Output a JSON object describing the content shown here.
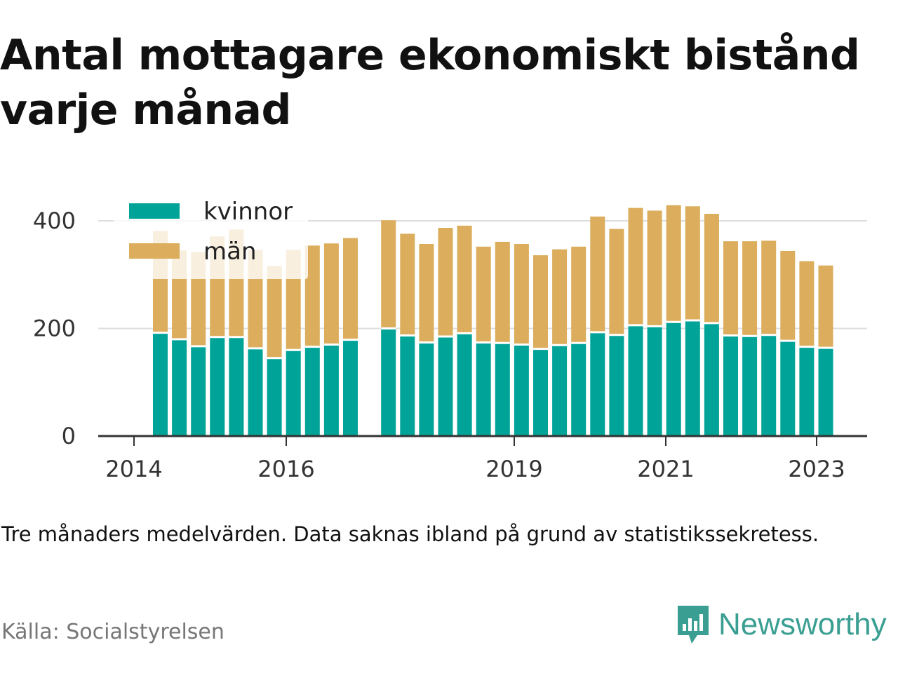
{
  "title": "Antal mottagare ekonomiskt bistånd varje månad",
  "note": "Tre månaders medelvärden. Data saknas ibland på grund av statistikssekretess.",
  "source": "Källa: Socialstyrelsen",
  "brand": "Newsworthy",
  "colors": {
    "kvinnor": "#00a398",
    "man": "#dbad5c",
    "brand": "#3a9f92",
    "grid": "#dddddd",
    "axis": "#333333"
  },
  "chart_data": {
    "type": "bar",
    "stacked": true,
    "x_tick_labels": [
      "2014",
      "2016",
      "2019",
      "2021",
      "2023"
    ],
    "y_ticks": [
      0,
      200,
      400
    ],
    "ylim": [
      0,
      430
    ],
    "grid": true,
    "legend_position": "top-left",
    "series": [
      {
        "name": "kvinnor",
        "values": [
          192,
          180,
          167,
          184,
          184,
          163,
          145,
          160,
          166,
          170,
          179,
          null,
          200,
          187,
          174,
          185,
          191,
          174,
          173,
          170,
          162,
          169,
          173,
          193,
          188,
          206,
          204,
          212,
          215,
          210,
          187,
          186,
          188,
          177,
          166,
          164
        ]
      },
      {
        "name": "män",
        "values": [
          189,
          165,
          175,
          187,
          200,
          183,
          171,
          186,
          188,
          188,
          189,
          null,
          201,
          189,
          183,
          202,
          200,
          178,
          188,
          187,
          174,
          178,
          179,
          215,
          197,
          218,
          215,
          217,
          212,
          203,
          175,
          176,
          175,
          167,
          159,
          153
        ]
      }
    ]
  }
}
